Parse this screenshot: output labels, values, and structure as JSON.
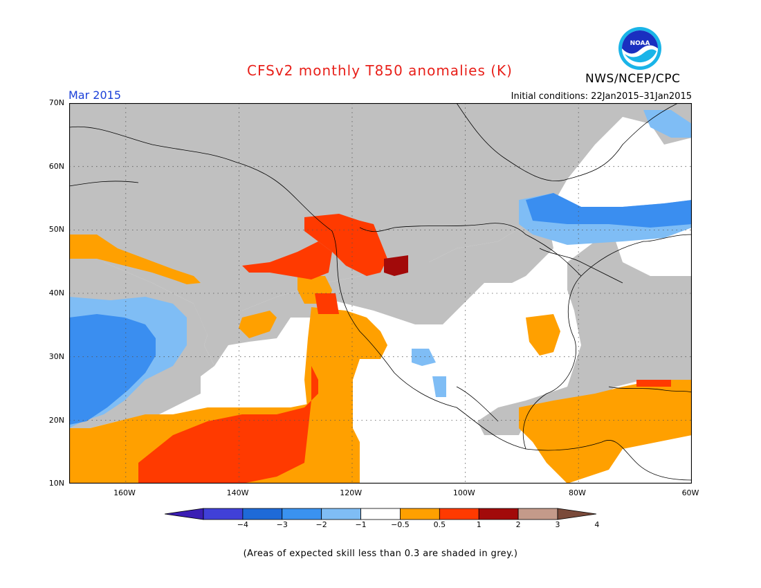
{
  "title": "CFSv2 monthly T850 anomalies (K)",
  "period": "Mar 2015",
  "initial_conditions": "Initial conditions: 22Jan2015–31Jan2015",
  "agency": "NWS/NCEP/CPC",
  "logo_text": "NOAA",
  "footnote": "(Areas of expected skill less than 0.3 are shaded in grey.)",
  "map": {
    "lat_labels": [
      "70N",
      "60N",
      "50N",
      "40N",
      "30N",
      "20N",
      "10N"
    ],
    "lon_labels": [
      "160W",
      "140W",
      "120W",
      "100W",
      "80W",
      "60W"
    ],
    "lat_range": [
      10,
      70
    ],
    "lon_range": [
      -170,
      -60
    ],
    "grid": true,
    "colors": {
      "grey": "#c0c0c0",
      "ocean_white": "#ffffff",
      "neg4": "#3b1eb4",
      "neg3": "#1e5ad2",
      "neg2": "#3a8ef0",
      "neg1": "#7fbdf5",
      "pos05": "#ffa000",
      "pos1": "#ff3a00",
      "pos2": "#a20a0a",
      "pos3": "#c49a8a",
      "pos4": "#7a4a3a"
    }
  },
  "colorbar": {
    "ticks": [
      "−4",
      "−3",
      "−2",
      "−1",
      "−0.5",
      "0.5",
      "1",
      "2",
      "3",
      "4"
    ],
    "colors": [
      "#3b1eb4",
      "#4040d8",
      "#1e6ad8",
      "#3a92f0",
      "#7fbdf5",
      "#ffffff",
      "#ffa000",
      "#ff3a00",
      "#a20a0a",
      "#c49a8a",
      "#7a4a3a"
    ]
  }
}
